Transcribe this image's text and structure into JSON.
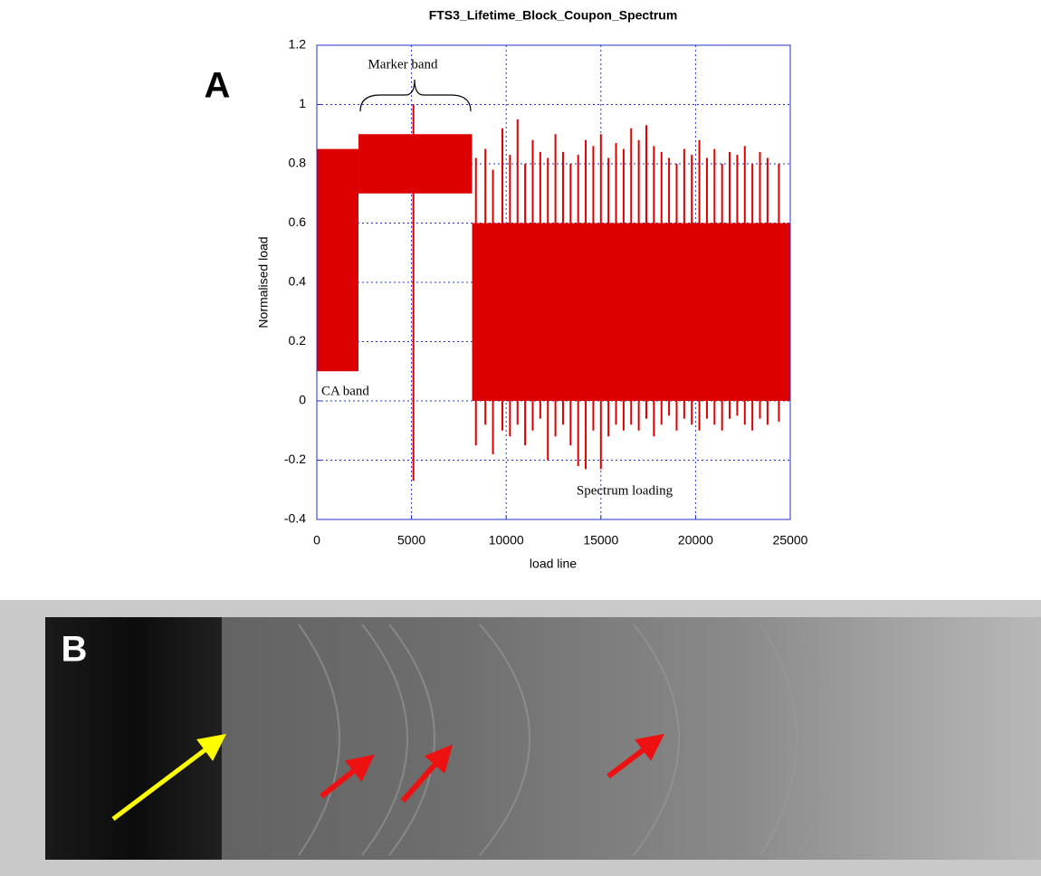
{
  "panel_labels": [
    "A",
    "B"
  ],
  "chart_data": {
    "type": "range",
    "title": "FTS3_Lifetime_Block_Coupon_Spectrum",
    "xlabel": "load line",
    "ylabel": "Normalised load",
    "annotations": [
      "Marker band",
      "CA band",
      "Spectrum loading"
    ],
    "xlim": [
      0,
      25000
    ],
    "ylim": [
      -0.4,
      1.2
    ],
    "xticks": [
      0,
      5000,
      10000,
      15000,
      20000,
      25000
    ],
    "yticks": [
      -0.4,
      -0.2,
      0,
      0.2,
      0.4,
      0.6,
      0.8,
      1,
      1.2
    ],
    "grid": true,
    "color": "#dd0000",
    "bands": [
      {
        "x0": 0,
        "x1": 2200,
        "low": 0.1,
        "high": 0.85
      },
      {
        "x0": 2200,
        "x1": 8200,
        "low": 0.7,
        "high": 0.9
      },
      {
        "x0": 8200,
        "x1": 25000,
        "low": 0.0,
        "high": 0.6
      }
    ],
    "spikes": {
      "x": [
        5100,
        8400,
        8900,
        9300,
        9800,
        10200,
        10600,
        11000,
        11400,
        11800,
        12200,
        12600,
        13000,
        13400,
        13800,
        14200,
        14600,
        15000,
        15400,
        15800,
        16200,
        16600,
        17000,
        17400,
        17800,
        18200,
        18600,
        19000,
        19400,
        19800,
        20200,
        20600,
        21000,
        21400,
        21800,
        22200,
        22600,
        23000,
        23400,
        23800,
        24400
      ],
      "low": [
        -0.27,
        -0.15,
        -0.08,
        -0.18,
        -0.1,
        -0.12,
        -0.08,
        -0.15,
        -0.1,
        -0.06,
        -0.2,
        -0.12,
        -0.08,
        -0.15,
        -0.22,
        -0.23,
        -0.1,
        -0.23,
        -0.12,
        -0.08,
        -0.1,
        -0.08,
        -0.1,
        -0.06,
        -0.12,
        -0.08,
        -0.05,
        -0.1,
        -0.06,
        -0.08,
        -0.1,
        -0.06,
        -0.08,
        -0.1,
        -0.06,
        -0.05,
        -0.08,
        -0.1,
        -0.06,
        -0.08,
        -0.07
      ],
      "high": [
        1.0,
        0.82,
        0.85,
        0.78,
        0.92,
        0.83,
        0.95,
        0.8,
        0.88,
        0.84,
        0.82,
        0.9,
        0.84,
        0.8,
        0.83,
        0.88,
        0.86,
        0.9,
        0.82,
        0.87,
        0.85,
        0.92,
        0.88,
        0.93,
        0.86,
        0.84,
        0.82,
        0.8,
        0.85,
        0.83,
        0.88,
        0.82,
        0.85,
        0.8,
        0.84,
        0.83,
        0.86,
        0.8,
        0.84,
        0.82,
        0.8
      ]
    }
  }
}
